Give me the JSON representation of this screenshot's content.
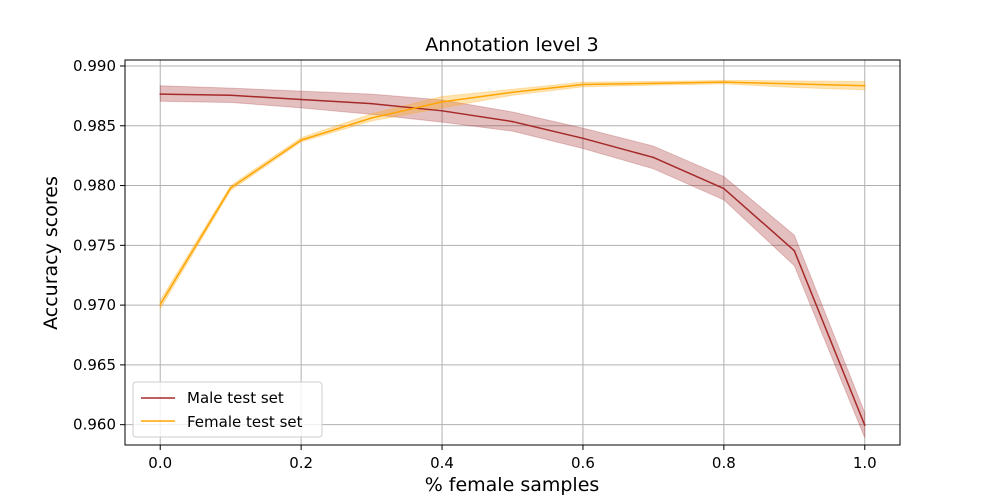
{
  "chart_data": {
    "type": "line",
    "title": "Annotation level 3",
    "xlabel": "% female samples",
    "ylabel": "Accuracy scores",
    "xlim": [
      -0.05,
      1.05
    ],
    "ylim": [
      0.9583,
      0.9905
    ],
    "x_ticks": [
      0.0,
      0.2,
      0.4,
      0.6,
      0.8,
      1.0
    ],
    "x_tick_labels": [
      "0.0",
      "0.2",
      "0.4",
      "0.6",
      "0.8",
      "1.0"
    ],
    "y_ticks": [
      0.96,
      0.965,
      0.97,
      0.975,
      0.98,
      0.985,
      0.99
    ],
    "y_tick_labels": [
      "0.960",
      "0.965",
      "0.970",
      "0.975",
      "0.980",
      "0.985",
      "0.990"
    ],
    "grid": true,
    "legend_position": "lower-left",
    "x": [
      0.0,
      0.1,
      0.2,
      0.3,
      0.4,
      0.5,
      0.6,
      0.7,
      0.8,
      0.9,
      1.0
    ],
    "series": [
      {
        "name": "Male test set",
        "color": "#a52a2a",
        "values": [
          0.98765,
          0.98755,
          0.9872,
          0.98685,
          0.98625,
          0.98535,
          0.98395,
          0.98235,
          0.97975,
          0.97455,
          0.95995
        ],
        "lower": [
          0.98705,
          0.98695,
          0.9865,
          0.98595,
          0.9853,
          0.98455,
          0.9831,
          0.9814,
          0.9788,
          0.9733,
          0.9589
        ],
        "upper": [
          0.98835,
          0.98815,
          0.9879,
          0.98765,
          0.98715,
          0.98615,
          0.9848,
          0.9833,
          0.98075,
          0.97585,
          0.961
        ]
      },
      {
        "name": "Female test set",
        "color": "#ffa500",
        "values": [
          0.97005,
          0.9798,
          0.9838,
          0.98565,
          0.987,
          0.9878,
          0.98845,
          0.98855,
          0.98865,
          0.9885,
          0.98835
        ],
        "lower": [
          0.9697,
          0.9796,
          0.98365,
          0.9854,
          0.9865,
          0.98755,
          0.98825,
          0.9884,
          0.9885,
          0.9882,
          0.988
        ],
        "upper": [
          0.9704,
          0.98,
          0.984,
          0.986,
          0.98745,
          0.98805,
          0.98865,
          0.9887,
          0.9888,
          0.98875,
          0.9887
        ]
      }
    ]
  }
}
